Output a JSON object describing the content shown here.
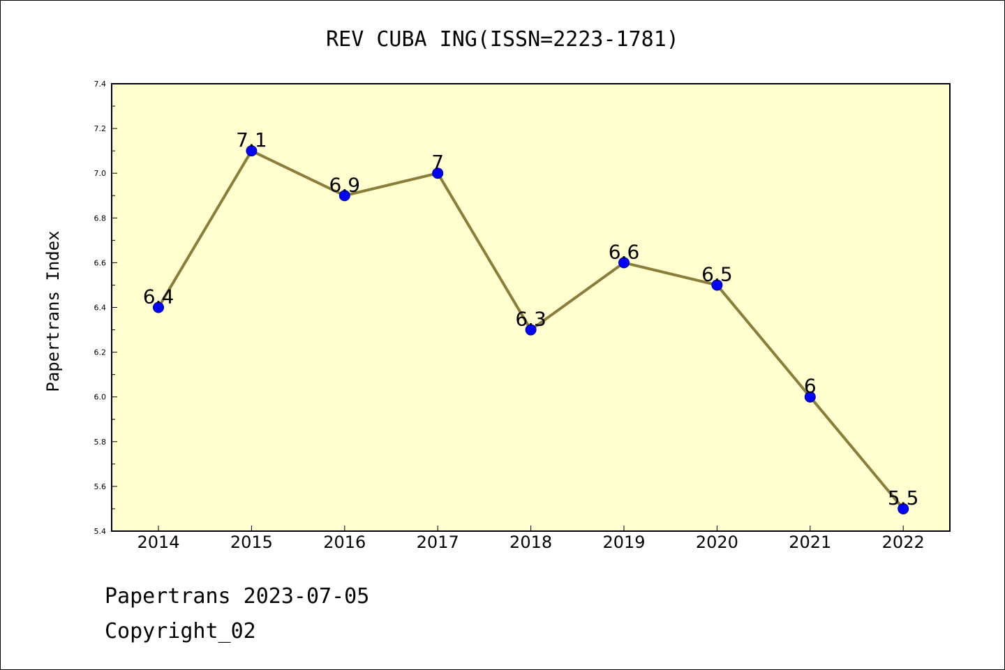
{
  "chart_data": {
    "type": "line",
    "title": "REV CUBA ING(ISSN=2223-1781)",
    "ylabel": "Papertrans Index",
    "xlabel": "",
    "categories": [
      "2014",
      "2015",
      "2016",
      "2017",
      "2018",
      "2019",
      "2020",
      "2021",
      "2022"
    ],
    "values": [
      6.4,
      7.1,
      6.9,
      7.0,
      6.3,
      6.6,
      6.5,
      6.0,
      5.5
    ],
    "data_labels": [
      "6.4",
      "7.1",
      "6.9",
      "7",
      "6.3",
      "6.6",
      "6.5",
      "6",
      "5.5"
    ],
    "ylim": [
      5.4,
      7.4
    ],
    "yticks": [
      "5.4",
      "5.6",
      "5.8",
      "6.0",
      "6.2",
      "6.4",
      "6.6",
      "6.8",
      "7.0",
      "7.2",
      "7.4"
    ],
    "grid": false,
    "legend": "none",
    "colors": {
      "plot_background": "#ffffd0",
      "line": "#8b7d3a",
      "marker": "#0000ff"
    }
  },
  "footer": {
    "line1": "Papertrans 2023-07-05",
    "line2": "Copyright_02"
  }
}
